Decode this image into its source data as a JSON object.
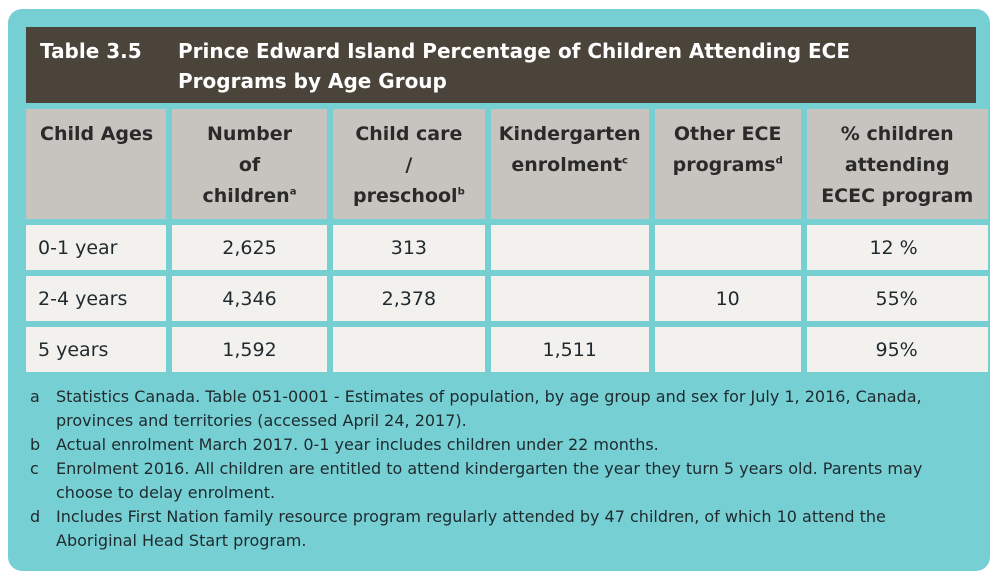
{
  "title": {
    "number": "Table 3.5",
    "text": "Prince Edward Island Percentage of Children Attending ECE Programs by Age Group"
  },
  "headers": [
    {
      "label": "Child Ages",
      "sup": ""
    },
    {
      "label": "Number of children",
      "sup": "a"
    },
    {
      "label": "Child care / preschool",
      "sup": "b"
    },
    {
      "label": "Kindergarten enrolment",
      "sup": "c"
    },
    {
      "label": "Other ECE programs",
      "sup": "d"
    },
    {
      "label": "% children attending ECEC program",
      "sup": ""
    }
  ],
  "rows": [
    {
      "age": "0-1 year",
      "children": "2,625",
      "childcare": "313",
      "kindergarten": "",
      "other": "",
      "percent": "12 %"
    },
    {
      "age": "2-4 years",
      "children": "4,346",
      "childcare": "2,378",
      "kindergarten": "",
      "other": "10",
      "percent": "55%"
    },
    {
      "age": "5 years",
      "children": "1,592",
      "childcare": "",
      "kindergarten": "1,511",
      "other": "",
      "percent": "95%"
    }
  ],
  "notes": [
    {
      "letter": "a",
      "text": "Statistics Canada. Table 051-0001 - Estimates of population, by age group and sex for July 1, 2016, Canada, provinces and territories (accessed April 24, 2017)."
    },
    {
      "letter": "b",
      "text": "Actual enrolment March 2017.  0-1 year includes children under 22 months."
    },
    {
      "letter": "c",
      "text": "Enrolment 2016. All children are entitled to attend kindergarten the year they turn 5 years old. Parents may choose to delay enrolment."
    },
    {
      "letter": "d",
      "text": "Includes First Nation family resource program regularly attended by 47 children, of which 10 attend the Aboriginal Head Start program."
    }
  ],
  "colors": {
    "panel": "#76cfd3",
    "title_bar": "#4a443a",
    "header_cell": "#c7c4bf",
    "data_cell": "#f3f1ee"
  }
}
